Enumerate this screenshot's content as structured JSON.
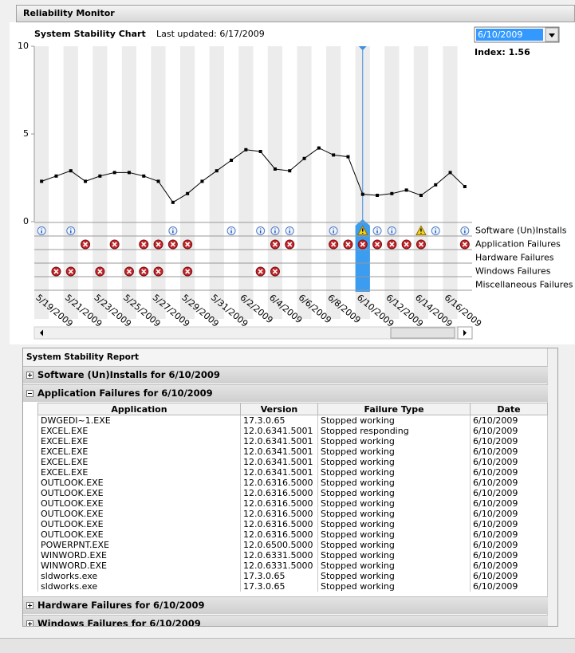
{
  "window": {
    "title": "Reliability Monitor"
  },
  "chart_data": {
    "type": "line",
    "title": "System Stability Chart",
    "subtitle": "Last updated: 6/17/2009",
    "selected_date": "6/10/2009",
    "index_label": "Index: 1.56",
    "selected": 22,
    "categories": [
      "5/19/2009",
      null,
      "5/21/2009",
      null,
      "5/23/2009",
      null,
      "5/25/2009",
      null,
      "5/27/2009",
      null,
      "5/29/2009",
      null,
      "5/31/2009",
      null,
      "6/2/2009",
      null,
      "6/4/2009",
      null,
      "6/6/2009",
      null,
      "6/8/2009",
      null,
      "6/10/2009",
      null,
      "6/12/2009",
      null,
      "6/14/2009",
      null,
      "6/16/2009",
      null
    ],
    "values": [
      2.3,
      2.6,
      2.9,
      2.3,
      2.6,
      2.8,
      2.8,
      2.6,
      2.3,
      1.1,
      1.6,
      2.3,
      2.9,
      3.5,
      4.1,
      4.0,
      3.0,
      2.9,
      3.6,
      4.2,
      3.8,
      3.7,
      1.56,
      1.5,
      1.6,
      1.8,
      1.5,
      2.1,
      2.8,
      2.0
    ],
    "color": "#000000",
    "ylim": [
      0,
      10
    ],
    "yticks": [
      0,
      5,
      10
    ],
    "events": [
      {
        "label": "Software (Un)Installs",
        "info": [
          0,
          2,
          9,
          13,
          15,
          16,
          17,
          20,
          23,
          24,
          27,
          29
        ],
        "warning": [
          22,
          26
        ],
        "error": []
      },
      {
        "label": "Application Failures",
        "info": [],
        "warning": [],
        "error": [
          3,
          5,
          7,
          8,
          9,
          10,
          16,
          17,
          20,
          21,
          22,
          23,
          24,
          25,
          26,
          29
        ]
      },
      {
        "label": "Hardware Failures",
        "info": [],
        "warning": [],
        "error": []
      },
      {
        "label": "Windows Failures",
        "info": [],
        "warning": [],
        "error": [
          1,
          2,
          4,
          6,
          7,
          8,
          10,
          15,
          16
        ]
      },
      {
        "label": "Miscellaneous Failures",
        "info": [],
        "warning": [],
        "error": []
      }
    ]
  },
  "report": {
    "title": "System Stability Report",
    "sections": [
      {
        "label": "Software (Un)Installs for 6/10/2009",
        "expanded": false
      },
      {
        "label": "Application Failures for 6/10/2009",
        "expanded": true,
        "table": {
          "columns": [
            "Application",
            "Version",
            "Failure Type",
            "Date"
          ],
          "rows": [
            [
              "DWGEDI~1.EXE",
              "17.3.0.65",
              "Stopped working",
              "6/10/2009"
            ],
            [
              "EXCEL.EXE",
              "12.0.6341.5001",
              "Stopped responding",
              "6/10/2009"
            ],
            [
              "EXCEL.EXE",
              "12.0.6341.5001",
              "Stopped working",
              "6/10/2009"
            ],
            [
              "EXCEL.EXE",
              "12.0.6341.5001",
              "Stopped working",
              "6/10/2009"
            ],
            [
              "EXCEL.EXE",
              "12.0.6341.5001",
              "Stopped working",
              "6/10/2009"
            ],
            [
              "EXCEL.EXE",
              "12.0.6341.5001",
              "Stopped working",
              "6/10/2009"
            ],
            [
              "OUTLOOK.EXE",
              "12.0.6316.5000",
              "Stopped working",
              "6/10/2009"
            ],
            [
              "OUTLOOK.EXE",
              "12.0.6316.5000",
              "Stopped working",
              "6/10/2009"
            ],
            [
              "OUTLOOK.EXE",
              "12.0.6316.5000",
              "Stopped working",
              "6/10/2009"
            ],
            [
              "OUTLOOK.EXE",
              "12.0.6316.5000",
              "Stopped working",
              "6/10/2009"
            ],
            [
              "OUTLOOK.EXE",
              "12.0.6316.5000",
              "Stopped working",
              "6/10/2009"
            ],
            [
              "OUTLOOK.EXE",
              "12.0.6316.5000",
              "Stopped working",
              "6/10/2009"
            ],
            [
              "POWERPNT.EXE",
              "12.0.6500.5000",
              "Stopped working",
              "6/10/2009"
            ],
            [
              "WINWORD.EXE",
              "12.0.6331.5000",
              "Stopped working",
              "6/10/2009"
            ],
            [
              "WINWORD.EXE",
              "12.0.6331.5000",
              "Stopped working",
              "6/10/2009"
            ],
            [
              "sldworks.exe",
              "17.3.0.65",
              "Stopped working",
              "6/10/2009"
            ],
            [
              "sldworks.exe",
              "17.3.0.65",
              "Stopped working",
              "6/10/2009"
            ]
          ]
        }
      },
      {
        "label": "Hardware Failures for 6/10/2009",
        "expanded": false
      },
      {
        "label": "Windows Failures for 6/10/2009",
        "expanded": false
      }
    ]
  }
}
